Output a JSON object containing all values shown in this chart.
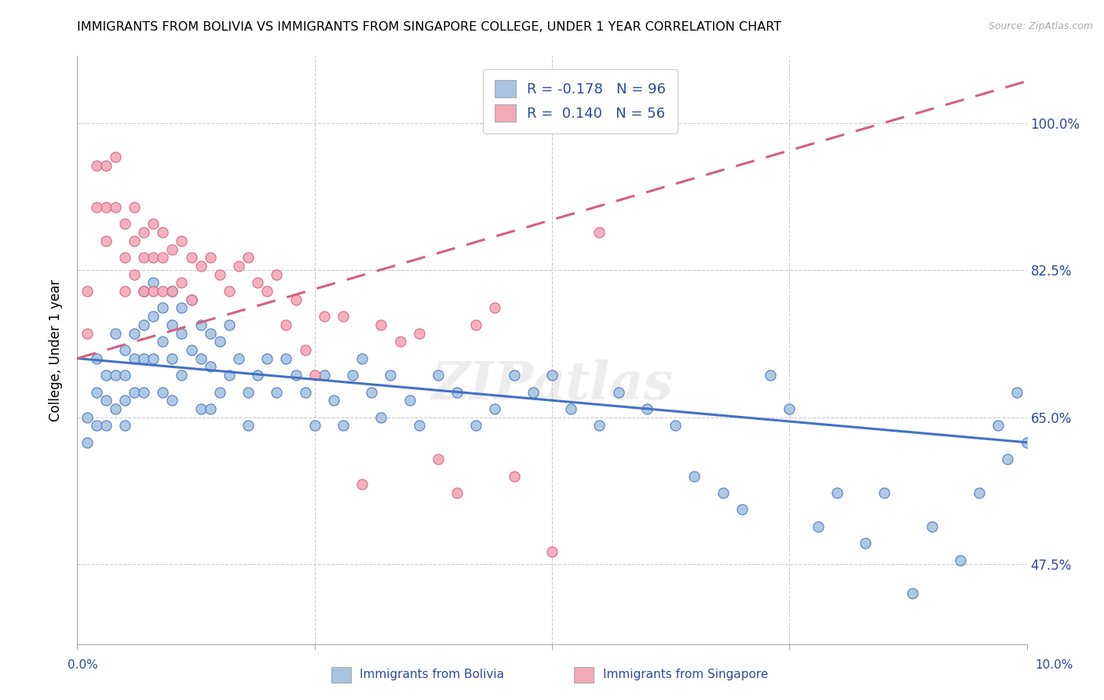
{
  "title": "IMMIGRANTS FROM BOLIVIA VS IMMIGRANTS FROM SINGAPORE COLLEGE, UNDER 1 YEAR CORRELATION CHART",
  "source": "Source: ZipAtlas.com",
  "ylabel": "College, Under 1 year",
  "ytick_labels": [
    "100.0%",
    "82.5%",
    "65.0%",
    "47.5%"
  ],
  "ytick_values": [
    1.0,
    0.825,
    0.65,
    0.475
  ],
  "xmin": 0.0,
  "xmax": 0.1,
  "ymin": 0.38,
  "ymax": 1.08,
  "legend_blue_R": "-0.178",
  "legend_blue_N": "96",
  "legend_pink_R": "0.140",
  "legend_pink_N": "56",
  "blue_color": "#a8c4e0",
  "pink_color": "#f4a8b8",
  "blue_line_color": "#4472c4",
  "pink_line_color": "#d46080",
  "text_color": "#2e4a9e",
  "watermark": "ZIPatlas",
  "blue_line_x0": 0.0,
  "blue_line_x1": 0.1,
  "blue_line_y0": 0.72,
  "blue_line_y1": 0.62,
  "pink_line_x0": 0.0,
  "pink_line_x1": 0.1,
  "pink_line_y0": 0.72,
  "pink_line_y1": 1.05,
  "blue_scatter_x": [
    0.001,
    0.001,
    0.002,
    0.002,
    0.002,
    0.003,
    0.003,
    0.003,
    0.004,
    0.004,
    0.004,
    0.005,
    0.005,
    0.005,
    0.005,
    0.006,
    0.006,
    0.006,
    0.007,
    0.007,
    0.007,
    0.007,
    0.008,
    0.008,
    0.008,
    0.009,
    0.009,
    0.009,
    0.01,
    0.01,
    0.01,
    0.01,
    0.011,
    0.011,
    0.011,
    0.012,
    0.012,
    0.013,
    0.013,
    0.013,
    0.014,
    0.014,
    0.014,
    0.015,
    0.015,
    0.016,
    0.016,
    0.017,
    0.018,
    0.018,
    0.019,
    0.02,
    0.021,
    0.022,
    0.023,
    0.024,
    0.025,
    0.026,
    0.027,
    0.028,
    0.029,
    0.03,
    0.031,
    0.032,
    0.033,
    0.035,
    0.036,
    0.038,
    0.04,
    0.042,
    0.044,
    0.046,
    0.048,
    0.05,
    0.052,
    0.055,
    0.057,
    0.06,
    0.063,
    0.065,
    0.068,
    0.07,
    0.073,
    0.075,
    0.078,
    0.08,
    0.083,
    0.085,
    0.088,
    0.09,
    0.093,
    0.095,
    0.097,
    0.098,
    0.099,
    0.1
  ],
  "blue_scatter_y": [
    0.65,
    0.62,
    0.72,
    0.68,
    0.64,
    0.7,
    0.67,
    0.64,
    0.75,
    0.7,
    0.66,
    0.73,
    0.7,
    0.67,
    0.64,
    0.75,
    0.72,
    0.68,
    0.8,
    0.76,
    0.72,
    0.68,
    0.81,
    0.77,
    0.72,
    0.78,
    0.74,
    0.68,
    0.8,
    0.76,
    0.72,
    0.67,
    0.78,
    0.75,
    0.7,
    0.79,
    0.73,
    0.76,
    0.72,
    0.66,
    0.75,
    0.71,
    0.66,
    0.74,
    0.68,
    0.76,
    0.7,
    0.72,
    0.68,
    0.64,
    0.7,
    0.72,
    0.68,
    0.72,
    0.7,
    0.68,
    0.64,
    0.7,
    0.67,
    0.64,
    0.7,
    0.72,
    0.68,
    0.65,
    0.7,
    0.67,
    0.64,
    0.7,
    0.68,
    0.64,
    0.66,
    0.7,
    0.68,
    0.7,
    0.66,
    0.64,
    0.68,
    0.66,
    0.64,
    0.58,
    0.56,
    0.54,
    0.7,
    0.66,
    0.52,
    0.56,
    0.5,
    0.56,
    0.44,
    0.52,
    0.48,
    0.56,
    0.64,
    0.6,
    0.68,
    0.62
  ],
  "pink_scatter_x": [
    0.001,
    0.001,
    0.002,
    0.002,
    0.003,
    0.003,
    0.003,
    0.004,
    0.004,
    0.005,
    0.005,
    0.005,
    0.006,
    0.006,
    0.006,
    0.007,
    0.007,
    0.007,
    0.008,
    0.008,
    0.008,
    0.009,
    0.009,
    0.009,
    0.01,
    0.01,
    0.011,
    0.011,
    0.012,
    0.012,
    0.013,
    0.014,
    0.015,
    0.016,
    0.017,
    0.018,
    0.019,
    0.02,
    0.021,
    0.022,
    0.023,
    0.024,
    0.025,
    0.026,
    0.028,
    0.03,
    0.032,
    0.034,
    0.036,
    0.038,
    0.04,
    0.042,
    0.044,
    0.046,
    0.05,
    0.055
  ],
  "pink_scatter_y": [
    0.8,
    0.75,
    0.95,
    0.9,
    0.95,
    0.9,
    0.86,
    0.96,
    0.9,
    0.88,
    0.84,
    0.8,
    0.9,
    0.86,
    0.82,
    0.87,
    0.84,
    0.8,
    0.88,
    0.84,
    0.8,
    0.87,
    0.84,
    0.8,
    0.85,
    0.8,
    0.86,
    0.81,
    0.84,
    0.79,
    0.83,
    0.84,
    0.82,
    0.8,
    0.83,
    0.84,
    0.81,
    0.8,
    0.82,
    0.76,
    0.79,
    0.73,
    0.7,
    0.77,
    0.77,
    0.57,
    0.76,
    0.74,
    0.75,
    0.6,
    0.56,
    0.76,
    0.78,
    0.58,
    0.49,
    0.87
  ]
}
